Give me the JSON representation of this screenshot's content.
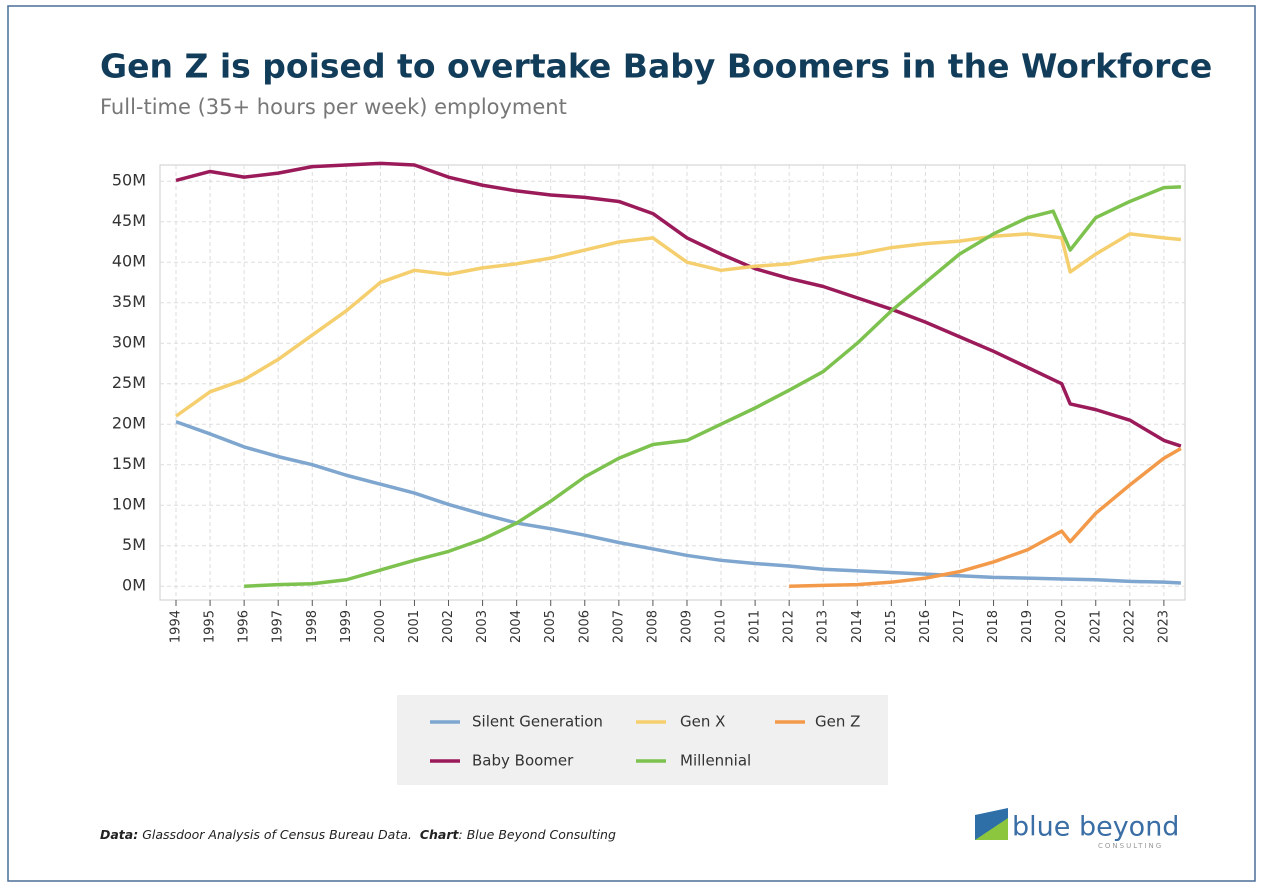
{
  "chart_data": {
    "type": "line",
    "title": "Gen Z is poised to overtake Baby Boomers in the Workforce",
    "subtitle": "Full-time (35+ hours per week) employment",
    "xlim": [
      1993.53,
      2023.62
    ],
    "ylim": [
      -1.7,
      52
    ],
    "xticks": [
      1994,
      1995,
      1996,
      1997,
      1998,
      1999,
      2000,
      2001,
      2002,
      2003,
      2004,
      2005,
      2006,
      2007,
      2008,
      2009,
      2010,
      2011,
      2012,
      2013,
      2014,
      2015,
      2016,
      2017,
      2018,
      2019,
      2020,
      2021,
      2022,
      2023
    ],
    "yticks": [
      {
        "value": 0,
        "label": "0M"
      },
      {
        "value": 5,
        "label": "5M"
      },
      {
        "value": 10,
        "label": "10M"
      },
      {
        "value": 15,
        "label": "15M"
      },
      {
        "value": 20,
        "label": "20M"
      },
      {
        "value": 25,
        "label": "25M"
      },
      {
        "value": 30,
        "label": "30M"
      },
      {
        "value": 35,
        "label": "35M"
      },
      {
        "value": 40,
        "label": "40M"
      },
      {
        "value": 45,
        "label": "45M"
      },
      {
        "value": 50,
        "label": "50M"
      }
    ],
    "grid": true,
    "series": [
      {
        "name": "Silent Generation",
        "color": "#7ea6cf",
        "x": [
          1994,
          1995,
          1996,
          1997,
          1998,
          1999,
          2000,
          2001,
          2002,
          2003,
          2004,
          2005,
          2006,
          2007,
          2008,
          2009,
          2010,
          2011,
          2012,
          2013,
          2014,
          2015,
          2016,
          2017,
          2018,
          2019,
          2020,
          2021,
          2022,
          2023,
          2023.5
        ],
        "values": [
          20.3,
          18.8,
          17.2,
          16,
          15,
          13.7,
          12.6,
          11.5,
          10.1,
          8.9,
          7.8,
          7.1,
          6.3,
          5.4,
          4.6,
          3.8,
          3.2,
          2.8,
          2.5,
          2.1,
          1.9,
          1.7,
          1.5,
          1.3,
          1.1,
          1.0,
          0.9,
          0.8,
          0.6,
          0.5,
          0.4
        ]
      },
      {
        "name": "Baby Boomer",
        "color": "#9b1b5a",
        "x": [
          1994,
          1995,
          1996,
          1997,
          1998,
          1999,
          2000,
          2001,
          2002,
          2003,
          2004,
          2005,
          2006,
          2007,
          2008,
          2009,
          2010,
          2011,
          2012,
          2013,
          2014,
          2015,
          2016,
          2017,
          2018,
          2019,
          2020,
          2020.25,
          2021,
          2022,
          2023,
          2023.5
        ],
        "values": [
          50.1,
          51.2,
          50.5,
          51.0,
          51.8,
          52.0,
          52.2,
          52.0,
          50.5,
          49.5,
          48.8,
          48.3,
          48,
          47.5,
          46,
          43,
          41,
          39.2,
          38,
          37,
          35.6,
          34.2,
          32.6,
          30.8,
          29,
          27,
          25,
          22.5,
          21.8,
          20.5,
          18,
          17.3
        ]
      },
      {
        "name": "Gen X",
        "color": "#f5cf6e",
        "x": [
          1994,
          1995,
          1996,
          1997,
          1998,
          1999,
          2000,
          2001,
          2002,
          2003,
          2004,
          2005,
          2006,
          2007,
          2008,
          2009,
          2010,
          2011,
          2012,
          2013,
          2014,
          2015,
          2016,
          2017,
          2018,
          2019,
          2020,
          2020.25,
          2021,
          2022,
          2023,
          2023.5
        ],
        "values": [
          21,
          24,
          25.5,
          28,
          31,
          34,
          37.5,
          39,
          38.5,
          39.3,
          39.8,
          40.5,
          41.5,
          42.5,
          43,
          40,
          39,
          39.5,
          39.8,
          40.5,
          41,
          41.8,
          42.3,
          42.6,
          43.2,
          43.5,
          43,
          38.8,
          41,
          43.5,
          43,
          42.8
        ]
      },
      {
        "name": "Millennial",
        "color": "#7dc24e",
        "x": [
          1996,
          1997,
          1998,
          1999,
          2000,
          2001,
          2002,
          2003,
          2004,
          2005,
          2006,
          2007,
          2008,
          2009,
          2010,
          2011,
          2012,
          2013,
          2014,
          2015,
          2016,
          2017,
          2018,
          2019,
          2019.75,
          2020.25,
          2021,
          2022,
          2023,
          2023.5
        ],
        "values": [
          0,
          0.2,
          0.3,
          0.8,
          2.0,
          3.2,
          4.3,
          5.8,
          7.8,
          10.5,
          13.5,
          15.8,
          17.5,
          18,
          20,
          22,
          24.2,
          26.5,
          30,
          34,
          37.5,
          41,
          43.5,
          45.5,
          46.3,
          41.5,
          45.5,
          47.5,
          49.2,
          49.3
        ]
      },
      {
        "name": "Gen Z",
        "color": "#f39a4a",
        "x": [
          2012,
          2013,
          2014,
          2015,
          2016,
          2017,
          2018,
          2019,
          2020,
          2020.25,
          2021,
          2022,
          2023,
          2023.5
        ],
        "values": [
          0,
          0.1,
          0.2,
          0.5,
          1.0,
          1.8,
          3.0,
          4.5,
          6.8,
          5.5,
          9,
          12.5,
          15.8,
          17
        ]
      }
    ]
  },
  "footer": {
    "data_label": "Data:",
    "data_text": "Glassdoor Analysis of Census Bureau Data.",
    "chart_label": "Chart",
    "chart_text": ": Blue Beyond Consulting"
  },
  "logo": {
    "name": "blue beyond",
    "tagline": "CONSULTING"
  }
}
